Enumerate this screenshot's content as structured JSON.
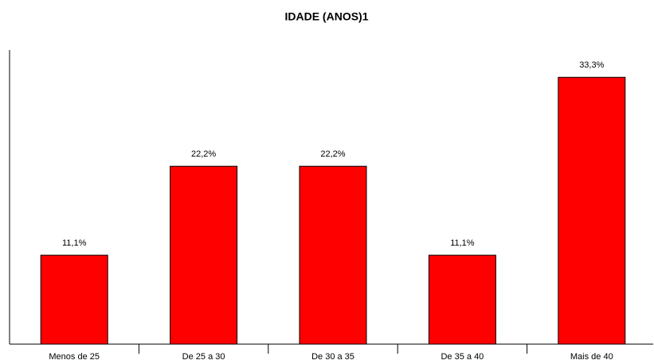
{
  "chart_data": {
    "type": "bar",
    "title": "IDADE (ANOS)1",
    "categories": [
      "Menos de 25",
      "De 25 a 30",
      "De 30 a 35",
      "De 35 a 40",
      "Mais de 40"
    ],
    "values": [
      11.1,
      22.2,
      22.2,
      11.1,
      33.3
    ],
    "value_labels": [
      "11,1%",
      "22,2%",
      "22,2%",
      "11,1%",
      "33,3%"
    ],
    "color": "#ff0000",
    "ylim": [
      0,
      36.7
    ]
  }
}
